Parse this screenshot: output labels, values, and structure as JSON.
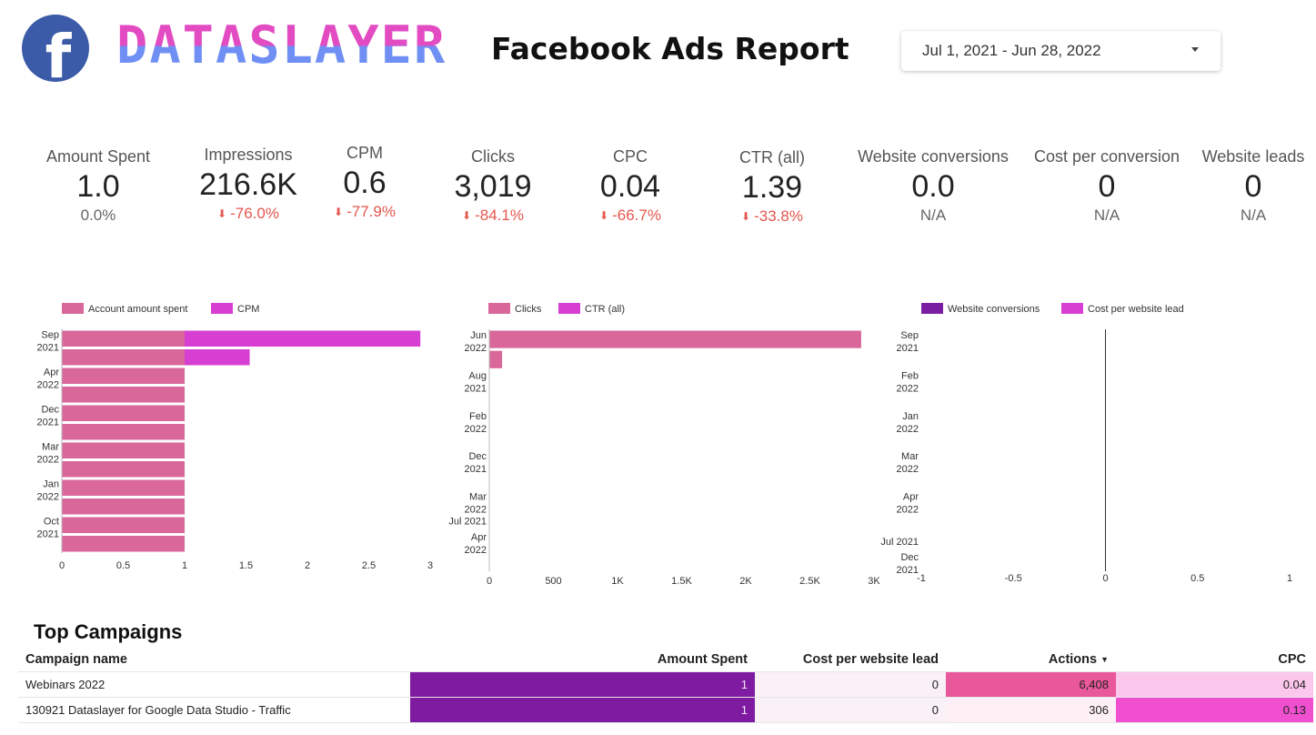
{
  "header": {
    "logo_letter": "f",
    "brand": "DATASLAYER",
    "title": "Facebook Ads Report",
    "date_range": "Jul 1, 2021 - Jun 28, 2022",
    "colors": {
      "facebook": "#3b5aa8",
      "brand_pink": "#e24bc2",
      "brand_blue": "#6f8ff5"
    }
  },
  "kpis": [
    {
      "label": "Amount Spent",
      "value": "1.0",
      "change": "0.0%",
      "trend": "none"
    },
    {
      "label": "Impressions",
      "value": "216.6K",
      "change": "-76.0%",
      "trend": "down"
    },
    {
      "label": "CPM",
      "value": "0.6",
      "change": "-77.9%",
      "trend": "down"
    },
    {
      "label": "Clicks",
      "value": "3,019",
      "change": "-84.1%",
      "trend": "down"
    },
    {
      "label": "CPC",
      "value": "0.04",
      "change": "-66.7%",
      "trend": "down"
    },
    {
      "label": "CTR (all)",
      "value": "1.39",
      "change": "-33.8%",
      "trend": "down"
    },
    {
      "label": "Website conversions",
      "value": "0.0",
      "change": "N/A",
      "trend": "none"
    },
    {
      "label": "Cost per conversion",
      "value": "0",
      "change": "N/A",
      "trend": "none"
    },
    {
      "label": "Website leads",
      "value": "0",
      "change": "N/A",
      "trend": "none"
    }
  ],
  "chart_data": [
    {
      "type": "bar",
      "orientation": "horizontal",
      "legend": [
        "Account amount spent",
        "CPM"
      ],
      "colors": [
        "#d9679a",
        "#d63fd1"
      ],
      "x_ticks": [
        "0",
        "0.5",
        "1",
        "1.5",
        "2",
        "2.5",
        "3"
      ],
      "xlim": [
        0,
        3
      ],
      "category_count": 12,
      "y_labels": [
        {
          "line1": "Sep",
          "line2": "2021",
          "index": 0
        },
        {
          "line1": "Apr",
          "line2": "2022",
          "index": 2
        },
        {
          "line1": "Dec",
          "line2": "2021",
          "index": 4
        },
        {
          "line1": "Mar",
          "line2": "2022",
          "index": 6
        },
        {
          "line1": "Jan",
          "line2": "2022",
          "index": 8
        },
        {
          "line1": "Oct",
          "line2": "2021",
          "index": 10
        }
      ],
      "series": [
        {
          "name": "Account amount spent",
          "values": [
            1,
            1,
            1,
            1,
            1,
            1,
            1,
            1,
            1,
            1,
            1,
            1
          ]
        },
        {
          "name": "CPM",
          "values": [
            1.92,
            0.53,
            0,
            0,
            0,
            0,
            0,
            0,
            0,
            0,
            0,
            0
          ]
        }
      ]
    },
    {
      "type": "bar",
      "orientation": "horizontal",
      "legend": [
        "Clicks",
        "CTR (all)"
      ],
      "colors": [
        "#d9679a",
        "#d63fd1"
      ],
      "x_ticks": [
        "0",
        "500",
        "1K",
        "1.5K",
        "2K",
        "2.5K",
        "3K"
      ],
      "xlim": [
        0,
        3000
      ],
      "category_count": 12,
      "y_labels": [
        {
          "line1": "Jun",
          "line2": "2022",
          "index": 0
        },
        {
          "line1": "Aug",
          "line2": "2021",
          "index": 2
        },
        {
          "line1": "Feb",
          "line2": "2022",
          "index": 4
        },
        {
          "line1": "Dec",
          "line2": "2021",
          "index": 6
        },
        {
          "line1": "Mar",
          "line2": "2022",
          "index": 8
        },
        {
          "line1": "Jul 2021",
          "line2": "",
          "index": 9
        },
        {
          "line1": "Apr",
          "line2": "2022",
          "index": 10
        }
      ],
      "series": [
        {
          "name": "Clicks",
          "values": [
            2900,
            100,
            0,
            0,
            0,
            0,
            0,
            0,
            0,
            0,
            0,
            0
          ]
        },
        {
          "name": "CTR (all)",
          "values": [
            0,
            0,
            0,
            0,
            0,
            0,
            0,
            0,
            0,
            0,
            0,
            0
          ]
        }
      ]
    },
    {
      "type": "bar",
      "orientation": "horizontal",
      "legend": [
        "Website conversions",
        "Cost per website lead"
      ],
      "colors": [
        "#7b1fa2",
        "#d63fd1"
      ],
      "x_ticks": [
        "-1",
        "-0.5",
        "0",
        "0.5",
        "1"
      ],
      "xlim": [
        -1,
        1
      ],
      "category_count": 12,
      "y_labels": [
        {
          "line1": "Sep",
          "line2": "2021",
          "index": 0
        },
        {
          "line1": "Feb",
          "line2": "2022",
          "index": 2
        },
        {
          "line1": "Jan",
          "line2": "2022",
          "index": 4
        },
        {
          "line1": "Mar",
          "line2": "2022",
          "index": 6
        },
        {
          "line1": "Apr",
          "line2": "2022",
          "index": 8
        },
        {
          "line1": "Jul 2021",
          "line2": "",
          "index": 10
        },
        {
          "line1": "Dec",
          "line2": "2021",
          "index": 11
        }
      ],
      "series": [
        {
          "name": "Website conversions",
          "values": [
            0,
            0,
            0,
            0,
            0,
            0,
            0,
            0,
            0,
            0,
            0,
            0
          ]
        },
        {
          "name": "Cost per website lead",
          "values": [
            0,
            0,
            0,
            0,
            0,
            0,
            0,
            0,
            0,
            0,
            0,
            0
          ]
        }
      ]
    }
  ],
  "top_campaigns": {
    "title": "Top Campaigns",
    "columns": {
      "name": "Campaign name",
      "spent": "Amount Spent",
      "cpl": "Cost per website lead",
      "actions": "Actions",
      "cpc": "CPC"
    },
    "rows": [
      {
        "name": "Webinars 2022",
        "spent": "1",
        "cpl": "0",
        "actions": "6,408",
        "cpc": "0.04"
      },
      {
        "name": "130921 Dataslayer for Google Data Studio - Traffic",
        "spent": "1",
        "cpl": "0",
        "actions": "306",
        "cpc": "0.13"
      }
    ],
    "cell_colors": {
      "spent": [
        "#7e1ba0",
        "#7e1ba0"
      ],
      "cpl": [
        "#f9f1f6",
        "#f9f1f6"
      ],
      "actions": [
        "#e8589a",
        "#fff0f6"
      ],
      "cpc": [
        "#fcc7ec",
        "#f050cf"
      ]
    }
  }
}
